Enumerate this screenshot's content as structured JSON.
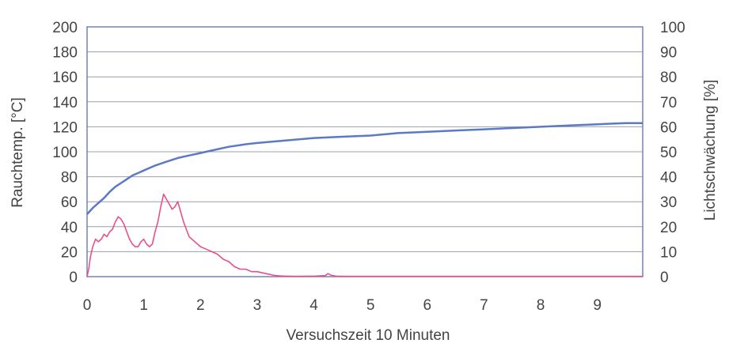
{
  "colors": {
    "temperature": "#5b79c4",
    "obscuration": "#ea4f86",
    "grid": "#9aa0aa",
    "frame": "#7283b8",
    "text": "#444444",
    "right_axis_title": "#e25a8c"
  },
  "chart_data": {
    "type": "line",
    "title": "",
    "xlabel": "Versuchszeit 10 Minuten",
    "ylabel": "Rauchtemp. [°C]",
    "y2label": "Lichtschwächung [%]",
    "xlim": [
      0,
      9.8
    ],
    "ylim": [
      0,
      200
    ],
    "y2lim": [
      0,
      100
    ],
    "xticks": [
      "0",
      "1",
      "2",
      "3",
      "4",
      "5",
      "6",
      "7",
      "8",
      "9"
    ],
    "yticks": [
      "0",
      "20",
      "40",
      "60",
      "80",
      "100",
      "120",
      "140",
      "160",
      "180",
      "200"
    ],
    "y2ticks": [
      "0",
      "10",
      "20",
      "30",
      "40",
      "50",
      "60",
      "70",
      "80",
      "90",
      "100"
    ],
    "grid": true,
    "series": [
      {
        "axis": "left",
        "color_key": "temperature",
        "x": [
          0,
          0.1,
          0.2,
          0.3,
          0.4,
          0.5,
          0.6,
          0.7,
          0.8,
          0.9,
          1.0,
          1.2,
          1.4,
          1.6,
          1.8,
          2.0,
          2.2,
          2.5,
          2.8,
          3.0,
          3.5,
          4.0,
          4.5,
          5.0,
          5.5,
          6.0,
          6.5,
          7.0,
          7.5,
          8.0,
          8.5,
          9.0,
          9.5,
          9.8
        ],
        "y": [
          50,
          55,
          59,
          63,
          68,
          72,
          75,
          78,
          81,
          83,
          85,
          89,
          92,
          95,
          97,
          99,
          101,
          104,
          106,
          107,
          109,
          111,
          112,
          113,
          115,
          116,
          117,
          118,
          119,
          120,
          121,
          122,
          123,
          123
        ]
      },
      {
        "axis": "right",
        "color_key": "obscuration",
        "x": [
          0.0,
          0.03,
          0.06,
          0.1,
          0.15,
          0.2,
          0.25,
          0.3,
          0.35,
          0.4,
          0.45,
          0.5,
          0.55,
          0.6,
          0.65,
          0.7,
          0.75,
          0.8,
          0.85,
          0.9,
          0.95,
          1.0,
          1.05,
          1.1,
          1.15,
          1.2,
          1.25,
          1.3,
          1.35,
          1.4,
          1.45,
          1.5,
          1.55,
          1.6,
          1.65,
          1.7,
          1.75,
          1.8,
          1.9,
          2.0,
          2.1,
          2.2,
          2.3,
          2.4,
          2.5,
          2.6,
          2.7,
          2.8,
          2.9,
          3.0,
          3.1,
          3.2,
          3.3,
          3.4,
          3.5,
          3.7,
          3.9,
          4.0,
          4.1,
          4.2,
          4.25,
          4.3,
          4.4,
          4.6,
          5.0,
          5.5,
          6.0,
          6.5,
          7.0,
          7.5,
          8.0,
          8.5,
          9.0,
          9.5,
          9.8
        ],
        "y": [
          0,
          3,
          8,
          12,
          15,
          14,
          15,
          17,
          16,
          18,
          19,
          22,
          24,
          23,
          21,
          18,
          15,
          13,
          12,
          12,
          14,
          15,
          13,
          12,
          13,
          18,
          22,
          28,
          33,
          31,
          29,
          27,
          28,
          30,
          26,
          22,
          19,
          16,
          14,
          12,
          11,
          10,
          9,
          7,
          6,
          4,
          3,
          3,
          2,
          2,
          1.5,
          1,
          0.5,
          0.3,
          0.2,
          0.1,
          0.2,
          0.2,
          0.3,
          0.4,
          1.2,
          0.6,
          0.2,
          0.1,
          0.1,
          0.1,
          0.1,
          0.1,
          0.1,
          0.1,
          0.1,
          0.1,
          0.1,
          0.1,
          0.1
        ]
      }
    ]
  }
}
